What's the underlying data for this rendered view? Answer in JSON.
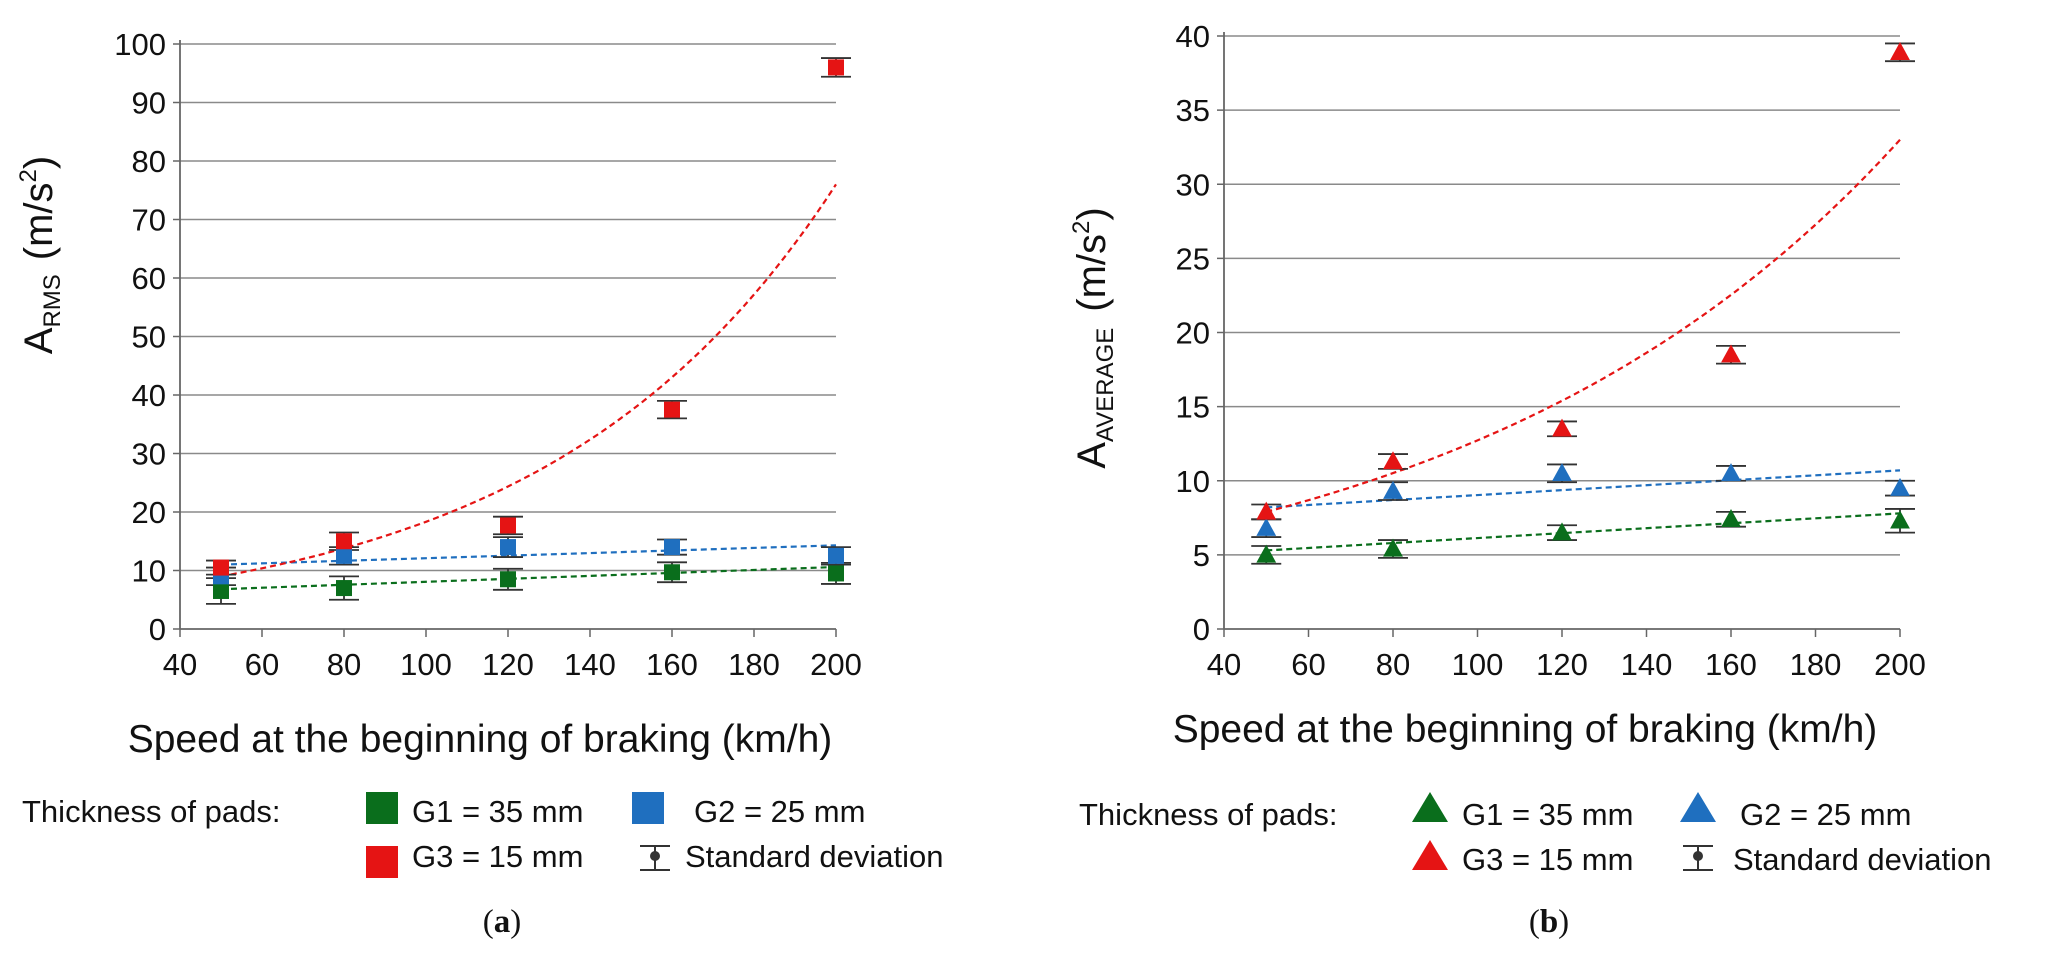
{
  "chart_data": [
    {
      "type": "scatter",
      "panel_label_open": "(",
      "panel_label_letter": "a",
      "panel_label_close": ")",
      "ylabel_main": "A",
      "ylabel_sub": "RMS",
      "ylabel_unit_open": "(m/s",
      "ylabel_unit_sup": "2",
      "ylabel_unit_close": ")",
      "xlabel": "Speed at the beginning of braking (km/h)",
      "xlim": [
        40,
        200
      ],
      "ylim": [
        0,
        100
      ],
      "xticks": [
        "40",
        "60",
        "80",
        "100",
        "120",
        "140",
        "160",
        "180",
        "200"
      ],
      "yticks": [
        "0",
        "10",
        "20",
        "30",
        "40",
        "50",
        "60",
        "70",
        "80",
        "90",
        "100"
      ],
      "grid": "horizontal",
      "marker": "square",
      "legend_position": "bottom",
      "legend_title": "Thickness of pads:",
      "std_label": "Standard deviation",
      "x": [
        50,
        80,
        120,
        160,
        200
      ],
      "series": [
        {
          "name": "G1 = 35 mm",
          "color": "#0a6e1c",
          "values": [
            6.5,
            7.0,
            8.5,
            9.7,
            9.5
          ],
          "std": [
            2.2,
            2.0,
            1.8,
            1.7,
            1.8
          ],
          "trend": {
            "kind": "linear",
            "from": [
              50,
              6.8
            ],
            "to": [
              200,
              10.6
            ]
          }
        },
        {
          "name": "G2 = 25 mm",
          "color": "#1f6fbf",
          "values": [
            9.0,
            12.5,
            14.0,
            14.0,
            12.5
          ],
          "std": [
            1.5,
            1.5,
            1.7,
            1.3,
            1.5
          ],
          "trend": {
            "kind": "linear",
            "from": [
              50,
              11.0
            ],
            "to": [
              200,
              14.3
            ]
          }
        },
        {
          "name": "G3 = 15 mm",
          "color": "#e51414",
          "values": [
            10.5,
            15.0,
            17.7,
            37.5,
            96.0
          ],
          "std": [
            1.2,
            1.5,
            1.5,
            1.5,
            1.6
          ],
          "trend": {
            "kind": "exponential",
            "from": [
              50,
              9.0
            ],
            "to": [
              200,
              76.0
            ]
          }
        }
      ]
    },
    {
      "type": "scatter",
      "panel_label_open": "(",
      "panel_label_letter": "b",
      "panel_label_close": ")",
      "ylabel_main": "A",
      "ylabel_sub": "AVERAGE",
      "ylabel_unit_open": "(m/s",
      "ylabel_unit_sup": "2",
      "ylabel_unit_close": ")",
      "xlabel": "Speed at the beginning of braking (km/h)",
      "xlim": [
        40,
        200
      ],
      "ylim": [
        0,
        40
      ],
      "xticks": [
        "40",
        "60",
        "80",
        "100",
        "120",
        "140",
        "160",
        "180",
        "200"
      ],
      "yticks": [
        "0",
        "5",
        "10",
        "15",
        "20",
        "25",
        "30",
        "35",
        "40"
      ],
      "grid": "horizontal",
      "marker": "triangle",
      "legend_position": "bottom",
      "legend_title": "Thickness of pads:",
      "std_label": "Standard deviation",
      "x": [
        50,
        80,
        120,
        160,
        200
      ],
      "series": [
        {
          "name": "G1 = 35 mm",
          "color": "#0a6e1c",
          "values": [
            5.0,
            5.4,
            6.5,
            7.4,
            7.3
          ],
          "std": [
            0.6,
            0.6,
            0.5,
            0.5,
            0.8
          ],
          "trend": {
            "kind": "linear",
            "from": [
              50,
              5.3
            ],
            "to": [
              200,
              7.8
            ]
          }
        },
        {
          "name": "G2 = 25 mm",
          "color": "#1f6fbf",
          "values": [
            6.8,
            9.3,
            10.5,
            10.5,
            9.5
          ],
          "std": [
            0.6,
            0.6,
            0.6,
            0.5,
            0.5
          ],
          "trend": {
            "kind": "linear",
            "from": [
              50,
              8.2
            ],
            "to": [
              200,
              10.7
            ]
          }
        },
        {
          "name": "G3 = 15 mm",
          "color": "#e51414",
          "values": [
            7.9,
            11.3,
            13.5,
            18.5,
            38.9
          ],
          "std": [
            0.5,
            0.5,
            0.5,
            0.6,
            0.6
          ],
          "trend": {
            "kind": "exponential",
            "from": [
              50,
              7.9
            ],
            "to": [
              200,
              33.0
            ]
          }
        }
      ]
    }
  ]
}
